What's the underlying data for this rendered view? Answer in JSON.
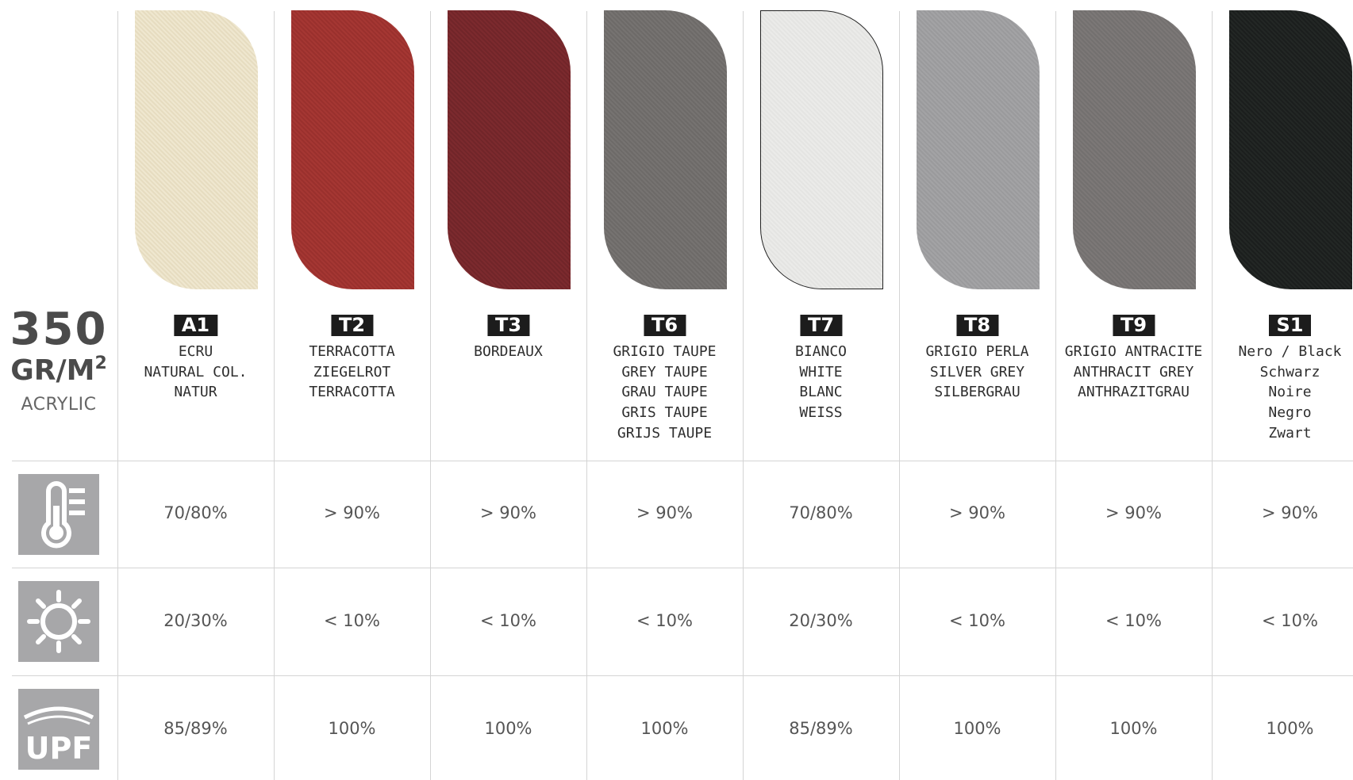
{
  "spec": {
    "weight": "350",
    "unit": "GR/M",
    "unit_sup": "2",
    "material": "ACRYLIC"
  },
  "rows": [
    {
      "name": "heat",
      "icon": "thermometer-icon"
    },
    {
      "name": "light",
      "icon": "sun-icon"
    },
    {
      "name": "upf",
      "icon": "upf-icon",
      "icon_text": "UPF"
    }
  ],
  "colors": [
    {
      "code": "A1",
      "names": [
        "ECRU",
        "NATURAL COL.",
        "NATUR"
      ],
      "swatch": "#efe7cf",
      "swatch_alt": "#e6dcc0",
      "heat": "70/80%",
      "light": "20/30%",
      "upf": "85/89%"
    },
    {
      "code": "T2",
      "names": [
        "TERRACOTTA",
        "ZIEGELROT",
        "TERRACOTTA"
      ],
      "swatch": "#a53733",
      "swatch_alt": "#9a302d",
      "heat": "> 90%",
      "light": "< 10%",
      "upf": "100%"
    },
    {
      "code": "T3",
      "names": [
        "BORDEAUX"
      ],
      "swatch": "#7c2a2e",
      "swatch_alt": "#712529",
      "heat": "> 90%",
      "light": "< 10%",
      "upf": "100%"
    },
    {
      "code": "T6",
      "names": [
        "GRIGIO TAUPE",
        "GREY TAUPE",
        "GRAU TAUPE",
        "GRIS TAUPE",
        "GRIJS TAUPE"
      ],
      "swatch": "#767371",
      "swatch_alt": "#6d6a68",
      "heat": "> 90%",
      "light": "< 10%",
      "upf": "100%"
    },
    {
      "code": "T7",
      "names": [
        "BIANCO",
        "WHITE",
        "BLANC",
        "WEISS"
      ],
      "swatch": "#ebebe9",
      "swatch_alt": "#e4e4e2",
      "heat": "70/80%",
      "light": "20/30%",
      "upf": "85/89%"
    },
    {
      "code": "T8",
      "names": [
        "GRIGIO PERLA",
        "SILVER GREY",
        "SILBERGRAU"
      ],
      "swatch": "#a3a3a5",
      "swatch_alt": "#9a9a9c",
      "heat": "> 90%",
      "light": "< 10%",
      "upf": "100%"
    },
    {
      "code": "T9",
      "names": [
        "GRIGIO ANTRACITE",
        "ANTHRACIT GREY",
        "ANTHRAZITGRAU"
      ],
      "swatch": "#7c7877",
      "swatch_alt": "#73706f",
      "heat": "> 90%",
      "light": "< 10%",
      "upf": "100%"
    },
    {
      "code": "S1",
      "names": [
        "Nero / Black",
        "Schwarz",
        "Noire",
        "Negro",
        "Zwart"
      ],
      "swatch": "#232725",
      "swatch_alt": "#1b1e1d",
      "heat": "> 90%",
      "light": "< 10%",
      "upf": "100%"
    }
  ]
}
